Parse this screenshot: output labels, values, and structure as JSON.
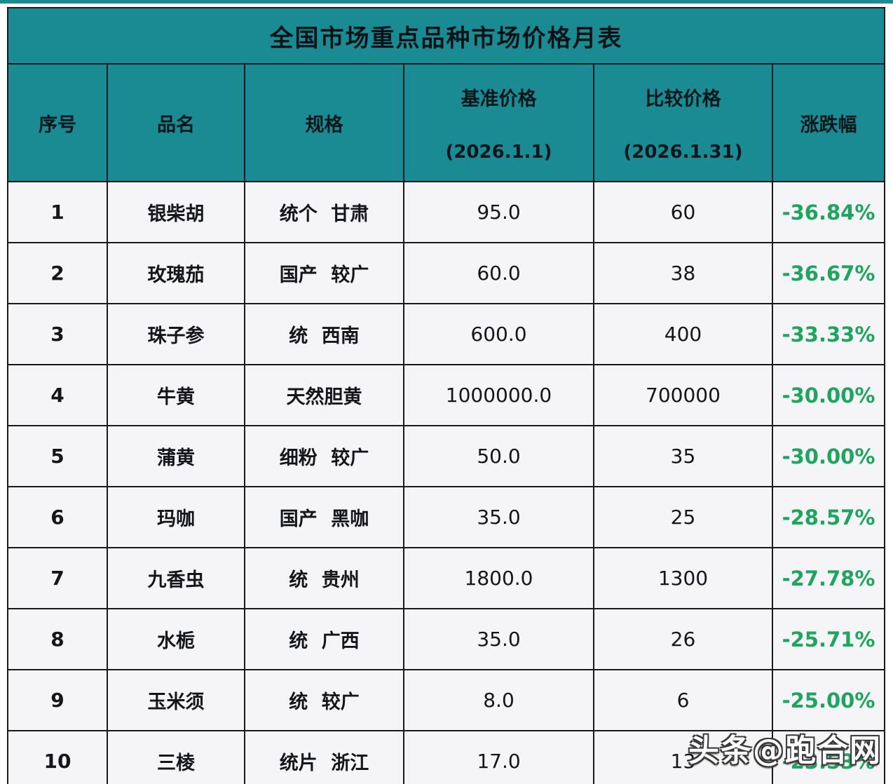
{
  "title": "全国市场重点品种市场价格月表",
  "columns": [
    {
      "label": "序号",
      "sub": ""
    },
    {
      "label": "品名",
      "sub": ""
    },
    {
      "label": "规格",
      "sub": ""
    },
    {
      "label": "基准价格",
      "sub": "(2026.1.1)"
    },
    {
      "label": "比较价格",
      "sub": "(2026.1.31)"
    },
    {
      "label": "涨跌幅",
      "sub": ""
    }
  ],
  "rows": [
    {
      "no": "1",
      "name": "银柴胡",
      "spec": "统个 甘肃",
      "base": "95.0",
      "compare": "60",
      "change": "-36.84%"
    },
    {
      "no": "2",
      "name": "玫瑰茄",
      "spec": "国产 较广",
      "base": "60.0",
      "compare": "38",
      "change": "-36.67%"
    },
    {
      "no": "3",
      "name": "珠子参",
      "spec": "统 西南",
      "base": "600.0",
      "compare": "400",
      "change": "-33.33%"
    },
    {
      "no": "4",
      "name": "牛黄",
      "spec": "天然胆黄",
      "base": "1000000.0",
      "compare": "700000",
      "change": "-30.00%"
    },
    {
      "no": "5",
      "name": "蒲黄",
      "spec": "细粉 较广",
      "base": "50.0",
      "compare": "35",
      "change": "-30.00%"
    },
    {
      "no": "6",
      "name": "玛咖",
      "spec": "国产 黑咖",
      "base": "35.0",
      "compare": "25",
      "change": "-28.57%"
    },
    {
      "no": "7",
      "name": "九香虫",
      "spec": "统 贵州",
      "base": "1800.0",
      "compare": "1300",
      "change": "-27.78%"
    },
    {
      "no": "8",
      "name": "水栀",
      "spec": "统 广西",
      "base": "35.0",
      "compare": "26",
      "change": "-25.71%"
    },
    {
      "no": "9",
      "name": "玉米须",
      "spec": "统 较广",
      "base": "8.0",
      "compare": "6",
      "change": "-25.00%"
    },
    {
      "no": "10",
      "name": "三棱",
      "spec": "统片 浙江",
      "base": "17.0",
      "compare": "13",
      "change": "-23.53%"
    }
  ],
  "watermark": "头条@跑合网",
  "colors": {
    "teal": "#1a8b93",
    "green": "#1ea55f",
    "cell_bg": "#f5f5f7",
    "border": "#1a1a1d"
  },
  "chart_data": {
    "type": "table",
    "title": "全国市场重点品种市场价格月表",
    "columns": [
      "序号",
      "品名",
      "规格",
      "基准价格 (2026.1.1)",
      "比较价格 (2026.1.31)",
      "涨跌幅"
    ],
    "rows": [
      [
        1,
        "银柴胡",
        "统个 甘肃",
        95.0,
        60,
        "-36.84%"
      ],
      [
        2,
        "玫瑰茄",
        "国产 较广",
        60.0,
        38,
        "-36.67%"
      ],
      [
        3,
        "珠子参",
        "统 西南",
        600.0,
        400,
        "-33.33%"
      ],
      [
        4,
        "牛黄",
        "天然胆黄",
        1000000.0,
        700000,
        "-30.00%"
      ],
      [
        5,
        "蒲黄",
        "细粉 较广",
        50.0,
        35,
        "-30.00%"
      ],
      [
        6,
        "玛咖",
        "国产 黑咖",
        35.0,
        25,
        "-28.57%"
      ],
      [
        7,
        "九香虫",
        "统 贵州",
        1800.0,
        1300,
        "-27.78%"
      ],
      [
        8,
        "水栀",
        "统 广西",
        35.0,
        26,
        "-25.71%"
      ],
      [
        9,
        "玉米须",
        "统 较广",
        8.0,
        6,
        "-25.00%"
      ],
      [
        10,
        "三棱",
        "统片 浙江",
        17.0,
        13,
        "-23.53%"
      ]
    ]
  }
}
